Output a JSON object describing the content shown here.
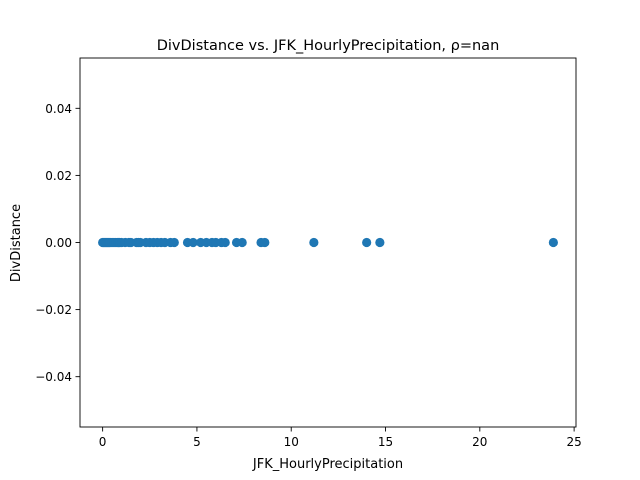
{
  "chart_data": {
    "type": "scatter",
    "title": "DivDistance vs. JFK_HourlyPrecipitation, ρ=nan",
    "xlabel": "JFK_HourlyPrecipitation",
    "ylabel": "DivDistance",
    "xlim": [
      -1.2,
      25.1
    ],
    "ylim": [
      -0.055,
      0.055
    ],
    "xticks": [
      0,
      5,
      10,
      15,
      20,
      25
    ],
    "xtick_labels": [
      "0",
      "5",
      "10",
      "15",
      "20",
      "25"
    ],
    "yticks": [
      -0.04,
      -0.02,
      0.0,
      0.02,
      0.04
    ],
    "ytick_labels": [
      "−0.04",
      "−0.02",
      "0.00",
      "0.02",
      "0.04"
    ],
    "grid": false,
    "legend": "none",
    "marker_color": "#1f77b4",
    "x": [
      0.0,
      0.05,
      0.1,
      0.15,
      0.2,
      0.25,
      0.3,
      0.35,
      0.4,
      0.5,
      0.6,
      0.7,
      0.8,
      0.85,
      0.9,
      1.0,
      1.2,
      1.4,
      1.5,
      1.8,
      1.9,
      2.0,
      2.3,
      2.5,
      2.7,
      2.9,
      3.1,
      3.3,
      3.6,
      3.8,
      4.5,
      4.8,
      5.2,
      5.5,
      5.8,
      6.0,
      6.3,
      6.5,
      7.1,
      7.4,
      8.4,
      8.6,
      11.2,
      14.0,
      14.7,
      23.9
    ],
    "y": [
      0,
      0,
      0,
      0,
      0,
      0,
      0,
      0,
      0,
      0,
      0,
      0,
      0,
      0,
      0,
      0,
      0,
      0,
      0,
      0,
      0,
      0,
      0,
      0,
      0,
      0,
      0,
      0,
      0,
      0,
      0,
      0,
      0,
      0,
      0,
      0,
      0,
      0,
      0,
      0,
      0,
      0,
      0,
      0,
      0,
      0
    ]
  }
}
